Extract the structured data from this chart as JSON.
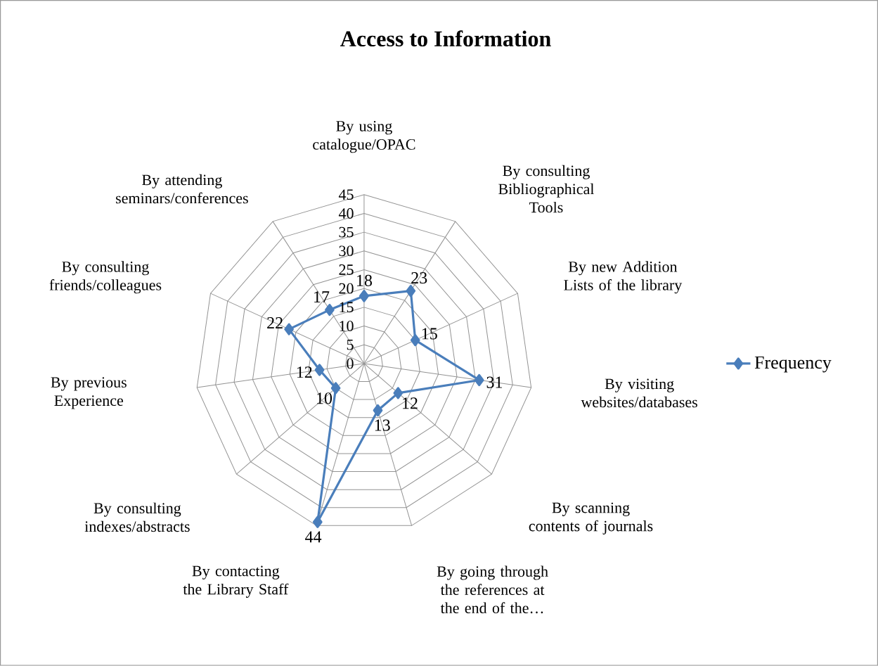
{
  "chart_data": {
    "type": "radar",
    "title": "Access to Information",
    "categories": [
      "By using catalogue/OPAC",
      "By consulting Bibliographical Tools",
      "By new Addition Lists of the library",
      "By visiting websites/databases",
      "By scanning contents of journals",
      "By going through the references at the end of the…",
      "By contacting the Library Staff",
      "By consulting indexes/abstracts",
      "By previous Experience",
      "By consulting friends/colleagues",
      "By attending seminars/conferences"
    ],
    "series": [
      {
        "name": "Frequency",
        "color": "#4a7ebb",
        "values": [
          18,
          23,
          15,
          31,
          12,
          13,
          44,
          10,
          12,
          22,
          17
        ]
      }
    ],
    "ylim": [
      0,
      45
    ],
    "yticks": [
      0,
      5,
      10,
      15,
      20,
      25,
      30,
      35,
      40,
      45
    ],
    "grid": true,
    "legend": "right",
    "marker": "diamond",
    "line_style": "solid",
    "data_labels": true
  }
}
